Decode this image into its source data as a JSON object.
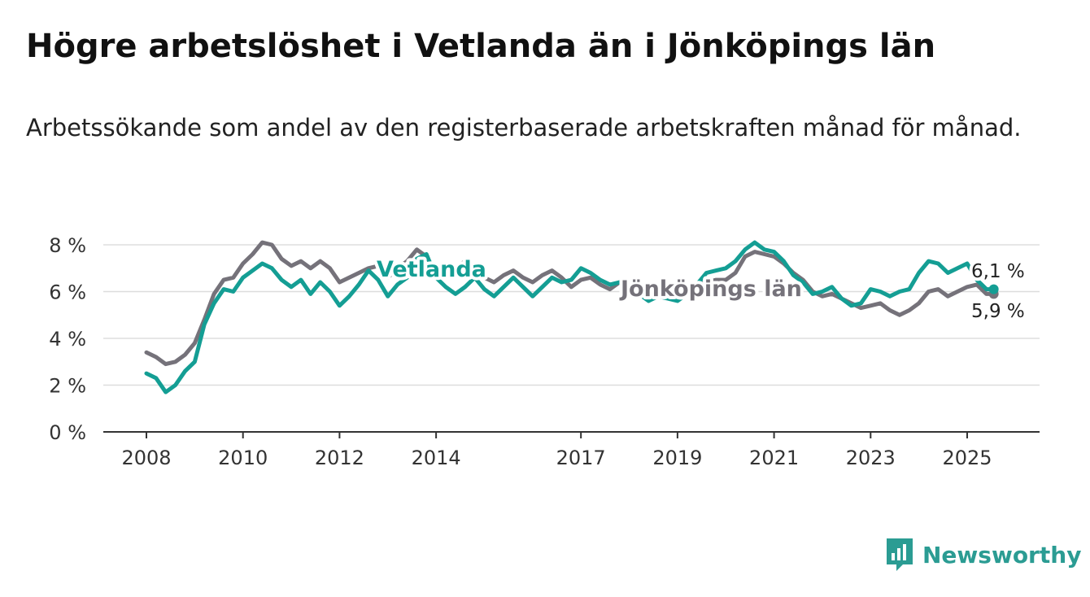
{
  "title": "Högre arbetslöshet i Vetlanda än i Jönköpings län",
  "subtitle": "Arbetssökande som andel av den registerbaserade arbetskraften månad för månad.",
  "logo": {
    "icon": "bar-chart-icon",
    "text": "Newsworthy",
    "color": "#2b9c93"
  },
  "chart_data": {
    "type": "line",
    "grid": true,
    "legend": "inline-labels",
    "ylim": [
      0,
      8
    ],
    "xlim": [
      2008,
      2026
    ],
    "y_ticks": [
      0,
      2,
      4,
      6,
      8
    ],
    "y_tick_labels": [
      "0 %",
      "2 %",
      "4 %",
      "6 %",
      "8 %"
    ],
    "x_ticks": [
      2008,
      2010,
      2012,
      2014,
      2017,
      2019,
      2021,
      2023,
      2025
    ],
    "x_tick_labels": [
      "2008",
      "2010",
      "2012",
      "2014",
      "2017",
      "2019",
      "2021",
      "2023",
      "2025"
    ],
    "series": [
      {
        "name": "Jönköpings län",
        "color": "#75727a",
        "end_label": "5,9 %",
        "points": [
          [
            2008.0,
            3.4
          ],
          [
            2008.2,
            3.2
          ],
          [
            2008.4,
            2.9
          ],
          [
            2008.6,
            3.0
          ],
          [
            2008.8,
            3.3
          ],
          [
            2009.0,
            3.8
          ],
          [
            2009.2,
            4.8
          ],
          [
            2009.4,
            5.9
          ],
          [
            2009.6,
            6.5
          ],
          [
            2009.8,
            6.6
          ],
          [
            2010.0,
            7.2
          ],
          [
            2010.2,
            7.6
          ],
          [
            2010.4,
            8.1
          ],
          [
            2010.6,
            8.0
          ],
          [
            2010.8,
            7.4
          ],
          [
            2011.0,
            7.1
          ],
          [
            2011.2,
            7.3
          ],
          [
            2011.4,
            7.0
          ],
          [
            2011.6,
            7.3
          ],
          [
            2011.8,
            7.0
          ],
          [
            2012.0,
            6.4
          ],
          [
            2012.2,
            6.6
          ],
          [
            2012.4,
            6.8
          ],
          [
            2012.6,
            7.0
          ],
          [
            2012.8,
            7.1
          ],
          [
            2013.0,
            6.6
          ],
          [
            2013.2,
            7.0
          ],
          [
            2013.4,
            7.3
          ],
          [
            2013.6,
            7.8
          ],
          [
            2013.8,
            7.5
          ],
          [
            2014.0,
            6.8
          ],
          [
            2014.2,
            6.6
          ],
          [
            2014.4,
            7.0
          ],
          [
            2014.6,
            7.3
          ],
          [
            2014.8,
            7.0
          ],
          [
            2015.0,
            6.6
          ],
          [
            2015.2,
            6.4
          ],
          [
            2015.4,
            6.7
          ],
          [
            2015.6,
            6.9
          ],
          [
            2015.8,
            6.6
          ],
          [
            2016.0,
            6.4
          ],
          [
            2016.2,
            6.7
          ],
          [
            2016.4,
            6.9
          ],
          [
            2016.6,
            6.6
          ],
          [
            2016.8,
            6.2
          ],
          [
            2017.0,
            6.5
          ],
          [
            2017.2,
            6.6
          ],
          [
            2017.4,
            6.3
          ],
          [
            2017.6,
            6.1
          ],
          [
            2017.8,
            6.4
          ],
          [
            2018.0,
            6.3
          ],
          [
            2018.2,
            6.1
          ],
          [
            2018.4,
            5.9
          ],
          [
            2018.6,
            6.1
          ],
          [
            2018.8,
            6.0
          ],
          [
            2019.0,
            5.9
          ],
          [
            2019.2,
            6.1
          ],
          [
            2019.4,
            6.3
          ],
          [
            2019.6,
            6.4
          ],
          [
            2019.8,
            6.5
          ],
          [
            2020.0,
            6.5
          ],
          [
            2020.2,
            6.8
          ],
          [
            2020.4,
            7.5
          ],
          [
            2020.6,
            7.7
          ],
          [
            2020.8,
            7.6
          ],
          [
            2021.0,
            7.5
          ],
          [
            2021.2,
            7.2
          ],
          [
            2021.4,
            6.8
          ],
          [
            2021.6,
            6.5
          ],
          [
            2021.8,
            6.0
          ],
          [
            2022.0,
            5.8
          ],
          [
            2022.2,
            5.9
          ],
          [
            2022.4,
            5.7
          ],
          [
            2022.6,
            5.5
          ],
          [
            2022.8,
            5.3
          ],
          [
            2023.0,
            5.4
          ],
          [
            2023.2,
            5.5
          ],
          [
            2023.4,
            5.2
          ],
          [
            2023.6,
            5.0
          ],
          [
            2023.8,
            5.2
          ],
          [
            2024.0,
            5.5
          ],
          [
            2024.2,
            6.0
          ],
          [
            2024.4,
            6.1
          ],
          [
            2024.6,
            5.8
          ],
          [
            2024.8,
            6.0
          ],
          [
            2025.0,
            6.2
          ],
          [
            2025.2,
            6.3
          ],
          [
            2025.4,
            5.9
          ],
          [
            2025.55,
            5.9
          ]
        ]
      },
      {
        "name": "Vetlanda",
        "color": "#149e94",
        "end_label": "6,1 %",
        "points": [
          [
            2008.0,
            2.5
          ],
          [
            2008.2,
            2.3
          ],
          [
            2008.4,
            1.7
          ],
          [
            2008.6,
            2.0
          ],
          [
            2008.8,
            2.6
          ],
          [
            2009.0,
            3.0
          ],
          [
            2009.2,
            4.6
          ],
          [
            2009.4,
            5.5
          ],
          [
            2009.6,
            6.1
          ],
          [
            2009.8,
            6.0
          ],
          [
            2010.0,
            6.6
          ],
          [
            2010.2,
            6.9
          ],
          [
            2010.4,
            7.2
          ],
          [
            2010.6,
            7.0
          ],
          [
            2010.8,
            6.5
          ],
          [
            2011.0,
            6.2
          ],
          [
            2011.2,
            6.5
          ],
          [
            2011.4,
            5.9
          ],
          [
            2011.6,
            6.4
          ],
          [
            2011.8,
            6.0
          ],
          [
            2012.0,
            5.4
          ],
          [
            2012.2,
            5.8
          ],
          [
            2012.4,
            6.3
          ],
          [
            2012.6,
            6.9
          ],
          [
            2012.8,
            6.5
          ],
          [
            2013.0,
            5.8
          ],
          [
            2013.2,
            6.3
          ],
          [
            2013.4,
            6.6
          ],
          [
            2013.6,
            7.4
          ],
          [
            2013.8,
            7.6
          ],
          [
            2014.0,
            6.6
          ],
          [
            2014.2,
            6.2
          ],
          [
            2014.4,
            5.9
          ],
          [
            2014.6,
            6.2
          ],
          [
            2014.8,
            6.6
          ],
          [
            2015.0,
            6.1
          ],
          [
            2015.2,
            5.8
          ],
          [
            2015.4,
            6.2
          ],
          [
            2015.6,
            6.6
          ],
          [
            2015.8,
            6.2
          ],
          [
            2016.0,
            5.8
          ],
          [
            2016.2,
            6.2
          ],
          [
            2016.4,
            6.6
          ],
          [
            2016.6,
            6.4
          ],
          [
            2016.8,
            6.5
          ],
          [
            2017.0,
            7.0
          ],
          [
            2017.2,
            6.8
          ],
          [
            2017.4,
            6.5
          ],
          [
            2017.6,
            6.3
          ],
          [
            2017.8,
            6.4
          ],
          [
            2018.0,
            6.2
          ],
          [
            2018.2,
            5.9
          ],
          [
            2018.4,
            5.6
          ],
          [
            2018.6,
            5.8
          ],
          [
            2018.8,
            5.7
          ],
          [
            2019.0,
            5.6
          ],
          [
            2019.2,
            5.9
          ],
          [
            2019.4,
            6.3
          ],
          [
            2019.6,
            6.8
          ],
          [
            2019.8,
            6.9
          ],
          [
            2020.0,
            7.0
          ],
          [
            2020.2,
            7.3
          ],
          [
            2020.4,
            7.8
          ],
          [
            2020.6,
            8.1
          ],
          [
            2020.8,
            7.8
          ],
          [
            2021.0,
            7.7
          ],
          [
            2021.2,
            7.3
          ],
          [
            2021.4,
            6.7
          ],
          [
            2021.6,
            6.4
          ],
          [
            2021.8,
            5.9
          ],
          [
            2022.0,
            6.0
          ],
          [
            2022.2,
            6.2
          ],
          [
            2022.4,
            5.7
          ],
          [
            2022.6,
            5.4
          ],
          [
            2022.8,
            5.5
          ],
          [
            2023.0,
            6.1
          ],
          [
            2023.2,
            6.0
          ],
          [
            2023.4,
            5.8
          ],
          [
            2023.6,
            6.0
          ],
          [
            2023.8,
            6.1
          ],
          [
            2024.0,
            6.8
          ],
          [
            2024.2,
            7.3
          ],
          [
            2024.4,
            7.2
          ],
          [
            2024.6,
            6.8
          ],
          [
            2024.8,
            7.0
          ],
          [
            2025.0,
            7.2
          ],
          [
            2025.2,
            6.5
          ],
          [
            2025.4,
            6.1
          ],
          [
            2025.55,
            6.1
          ]
        ]
      }
    ]
  }
}
